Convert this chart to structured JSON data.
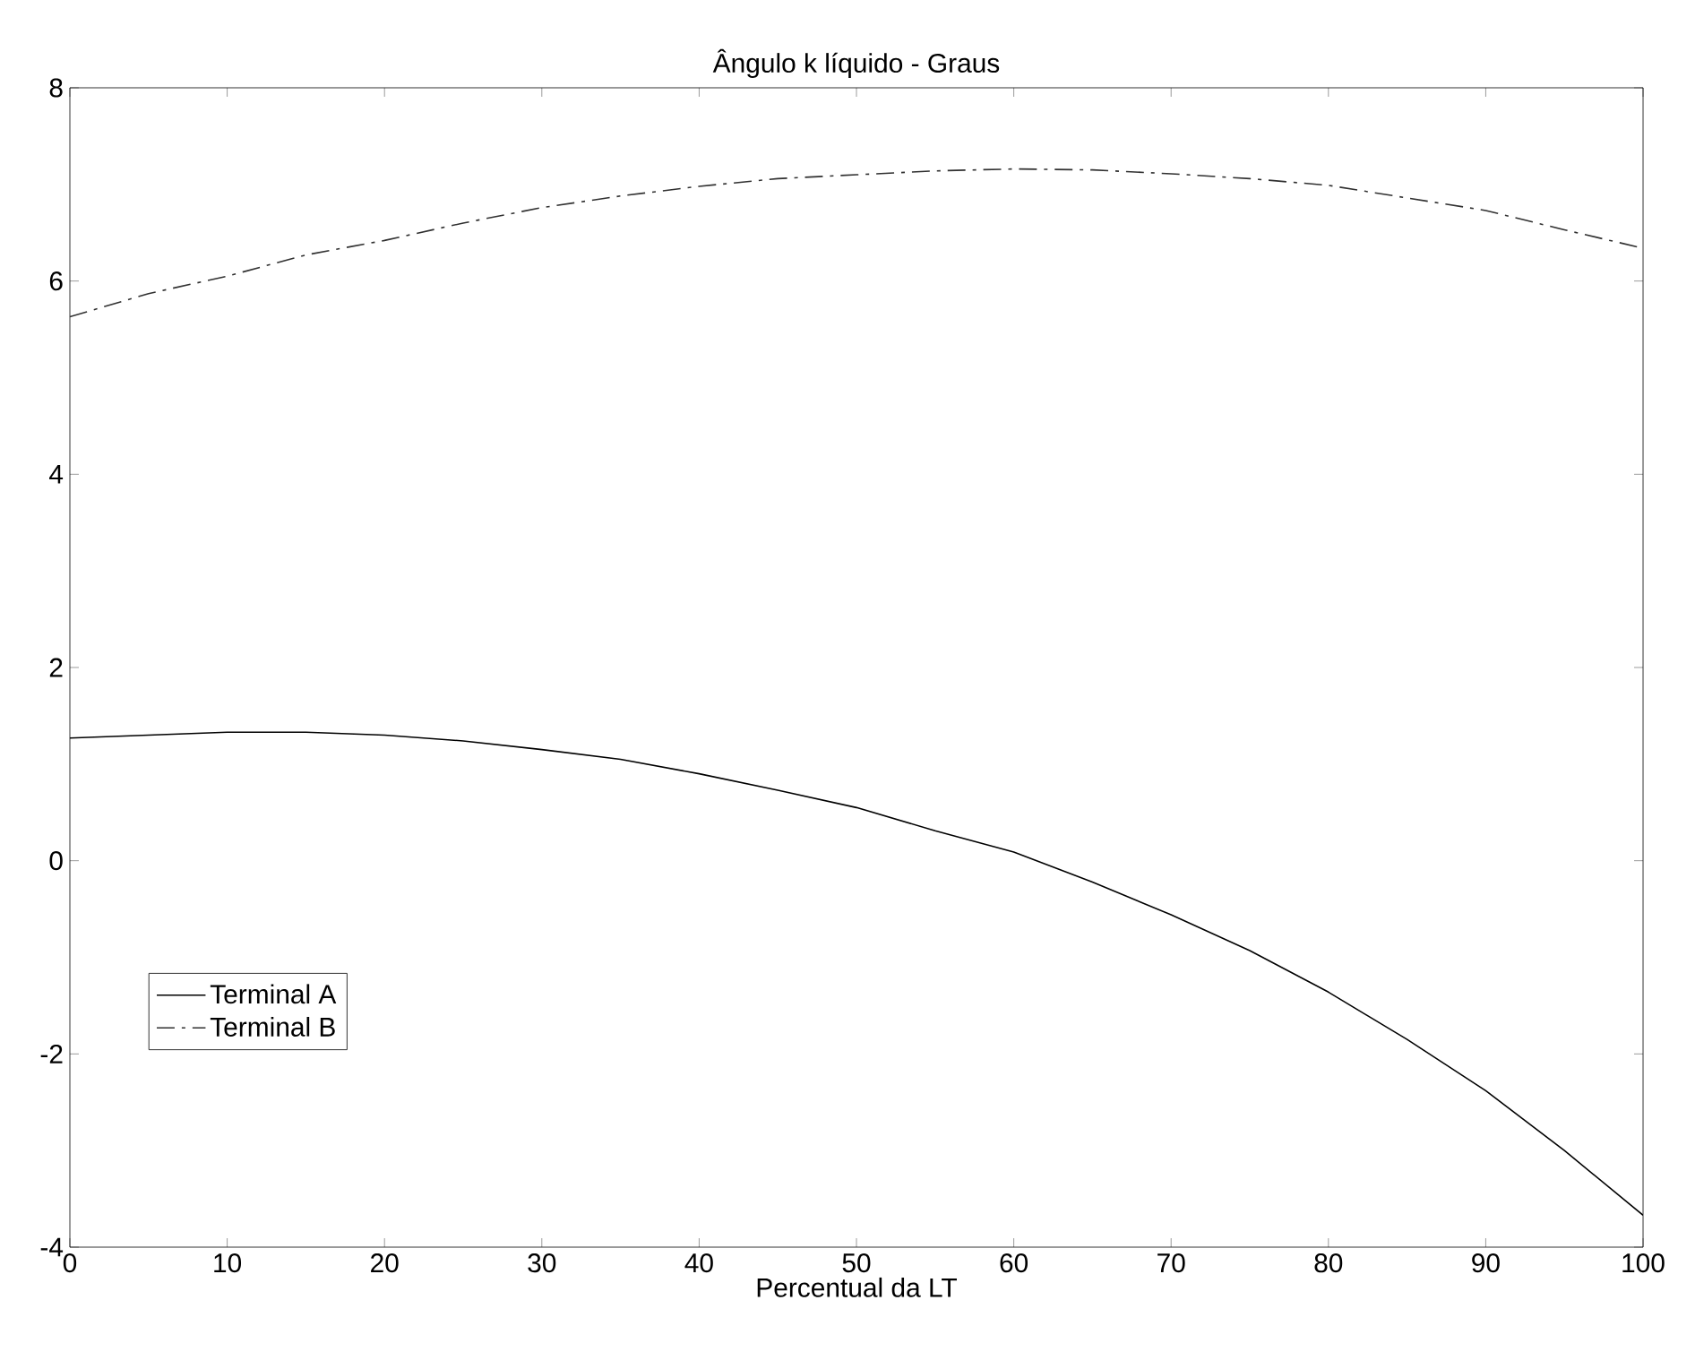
{
  "chart_data": {
    "type": "line",
    "title": "Ângulo k líquido - Graus",
    "xlabel": "Percentual da LT",
    "x": [
      0,
      5,
      10,
      15,
      20,
      25,
      30,
      35,
      40,
      45,
      50,
      55,
      60,
      65,
      70,
      75,
      80,
      85,
      90,
      95,
      100
    ],
    "series": [
      {
        "name": "Terminal A",
        "color": "#000000",
        "line_style": "solid",
        "values": [
          1.27,
          1.3,
          1.33,
          1.33,
          1.3,
          1.24,
          1.15,
          1.05,
          0.9,
          0.73,
          0.55,
          0.31,
          0.09,
          -0.22,
          -0.56,
          -0.93,
          -1.36,
          -1.85,
          -2.38,
          -3.0,
          -3.67
        ]
      },
      {
        "name": "Terminal B",
        "color": "#303030",
        "line_style": "dashdot",
        "values": [
          5.63,
          5.87,
          6.05,
          6.27,
          6.42,
          6.6,
          6.76,
          6.88,
          6.98,
          7.06,
          7.1,
          7.14,
          7.16,
          7.15,
          7.11,
          7.06,
          6.99,
          6.86,
          6.73,
          6.53,
          6.34
        ]
      }
    ],
    "xlim": [
      0,
      100
    ],
    "xticks": [
      0,
      10,
      20,
      30,
      40,
      50,
      60,
      70,
      80,
      90,
      100
    ],
    "ylim": [
      -4,
      8
    ],
    "yticks": [
      -4,
      -2,
      0,
      2,
      4,
      6,
      8
    ],
    "legend": "bottom left",
    "grid": false,
    "marker": "none"
  }
}
